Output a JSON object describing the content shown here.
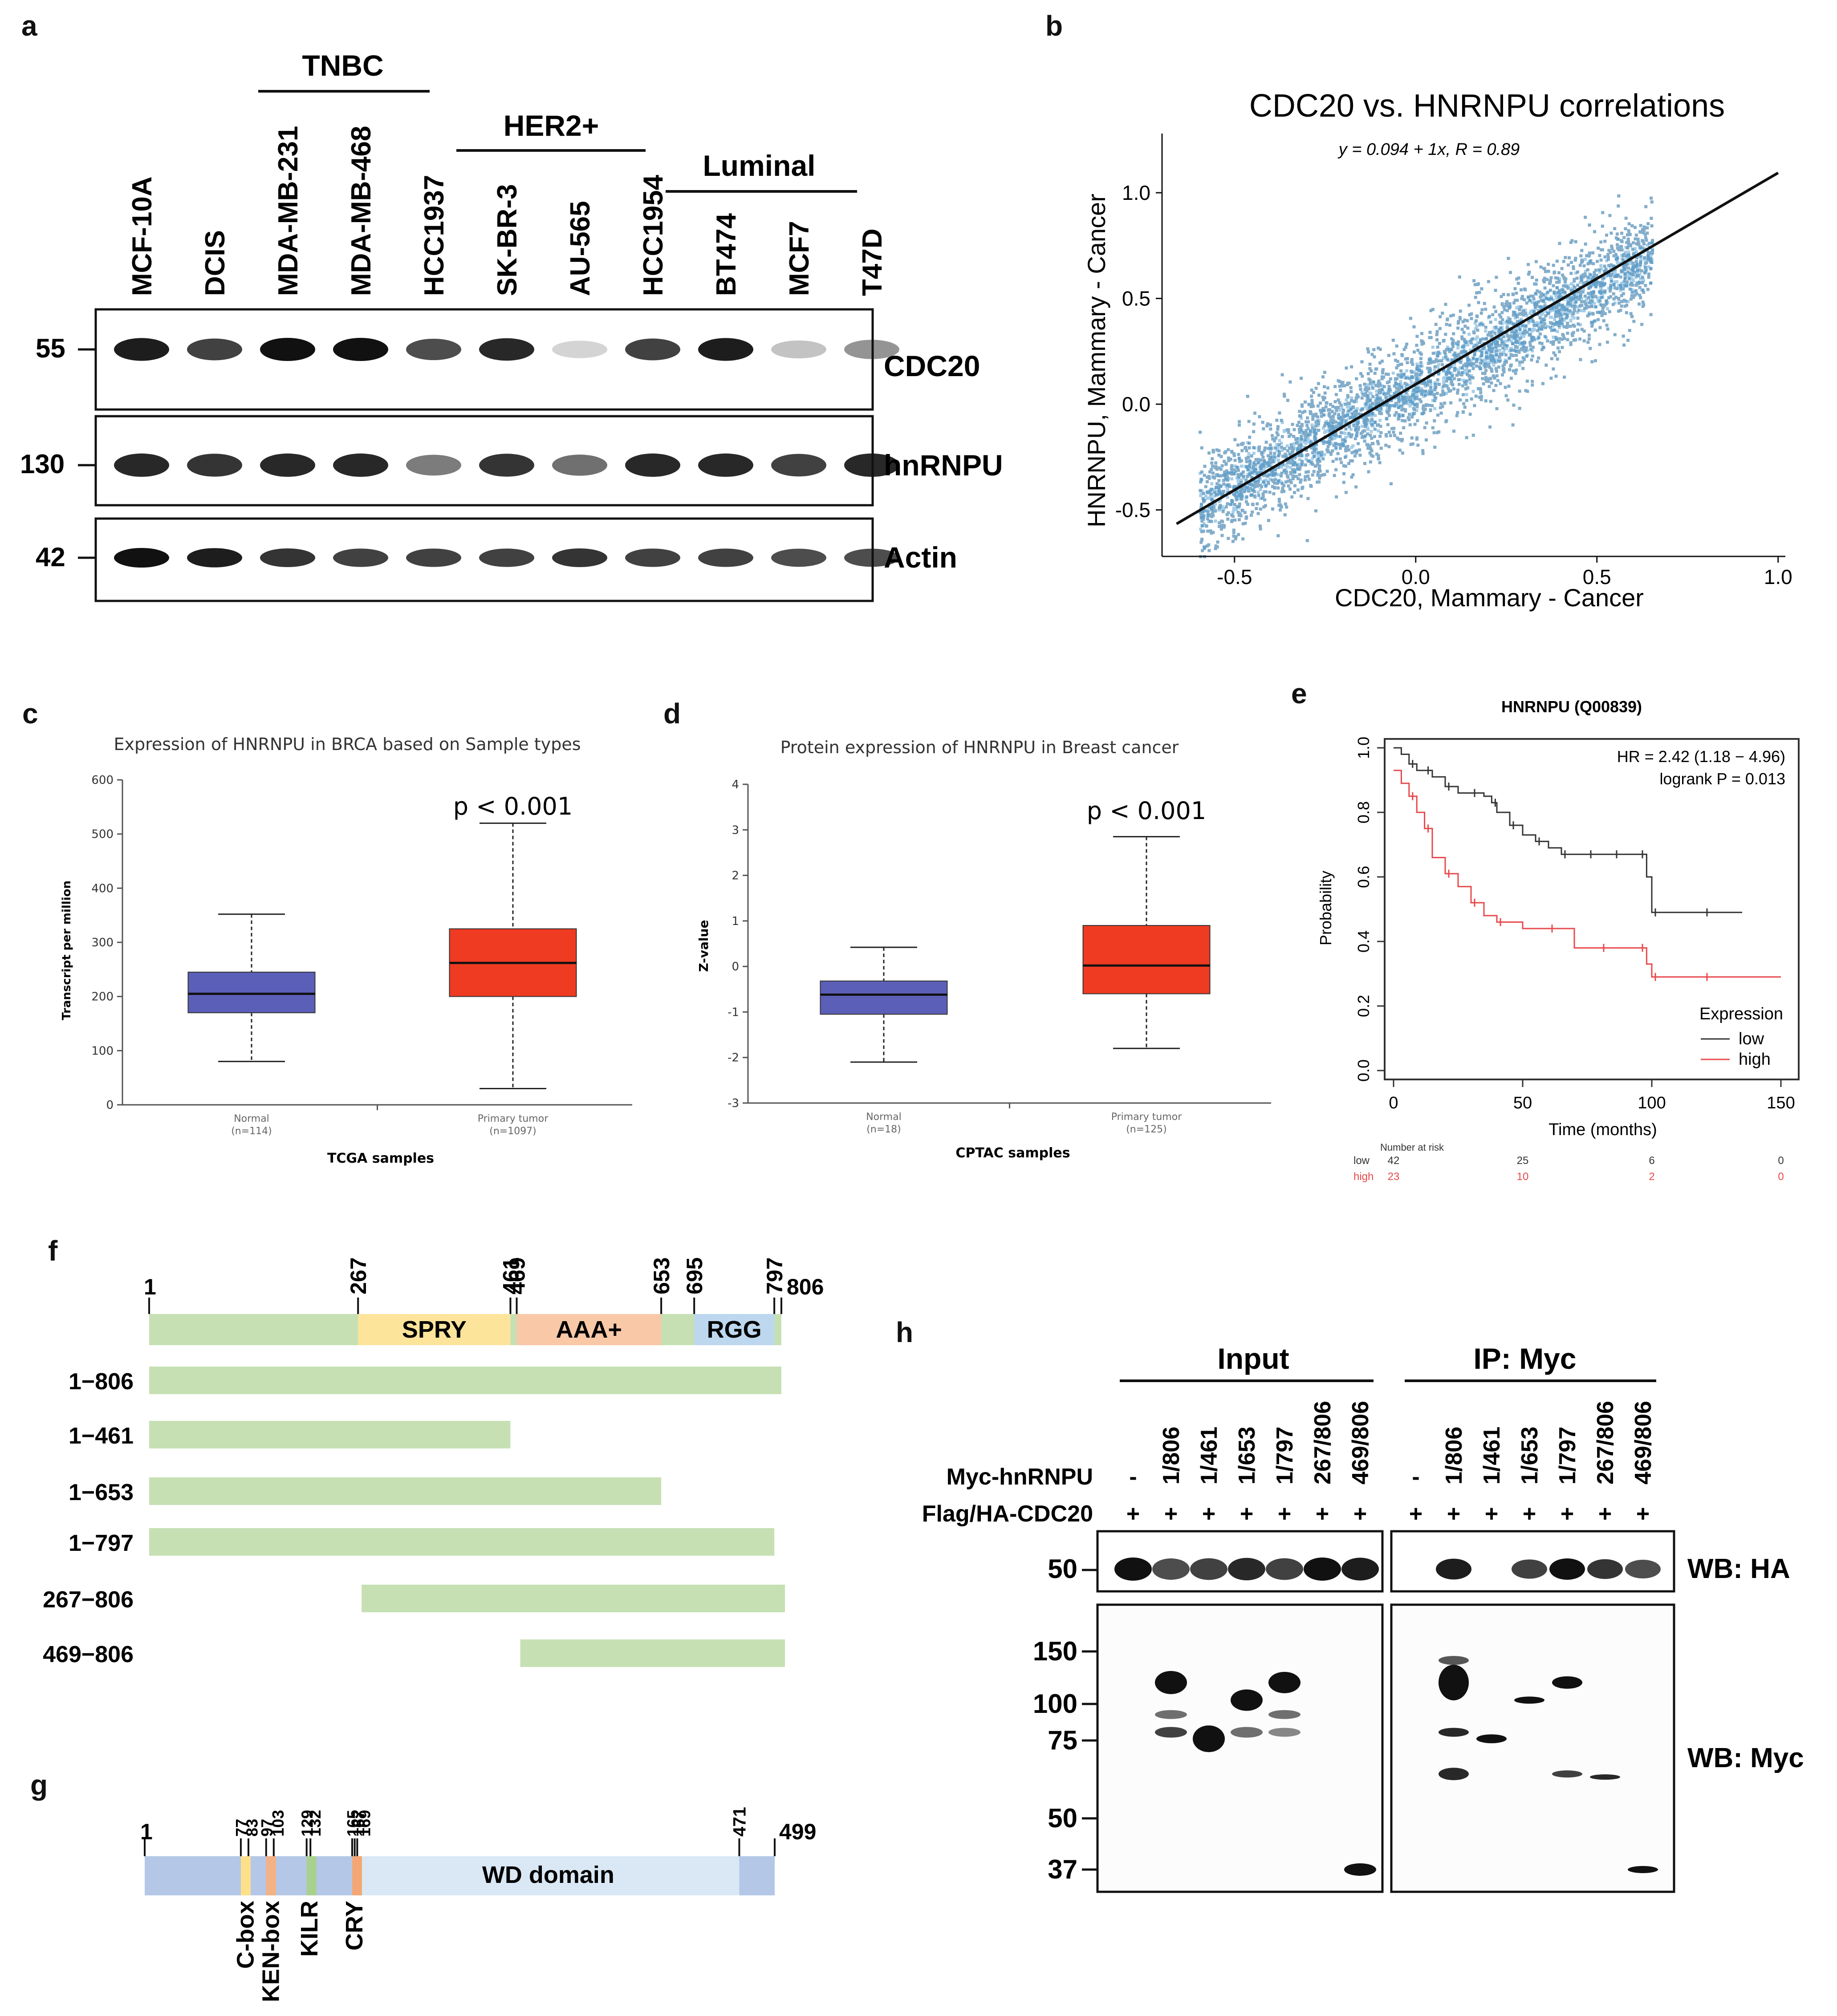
{
  "panels": {
    "a": "a",
    "b": "b",
    "c": "c",
    "d": "d",
    "e": "e",
    "f": "f",
    "g": "g",
    "h": "h"
  },
  "panel_a": {
    "groups": [
      "TNBC",
      "HER2+",
      "Luminal"
    ],
    "lanes": [
      "MCF-10A",
      "DCIS",
      "MDA-MB-231",
      "MDA-MB-468",
      "HCC1937",
      "SK-BR-3",
      "AU-565",
      "HCC1954",
      "BT474",
      "MCF7",
      "T47D"
    ],
    "markers": [
      "55",
      "130",
      "42"
    ],
    "proteins": [
      "CDC20",
      "hnRNPU",
      "Actin"
    ]
  },
  "panel_c": {
    "title": "Expression of HNRNPU in BRCA based on Sample types",
    "ylabel": "Transcript per million",
    "xlabel": "TCGA samples",
    "groups": [
      {
        "name": "Normal",
        "n": "(n=114)"
      },
      {
        "name": "Primary tumor",
        "n": "(n=1097)"
      }
    ],
    "pvalue": "p < 0.001"
  },
  "panel_d": {
    "title": "Protein expression of HNRNPU in Breast cancer",
    "ylabel": "Z-value",
    "xlabel": "CPTAC samples",
    "groups": [
      {
        "name": "Normal",
        "n": "(n=18)"
      },
      {
        "name": "Primary tumor",
        "n": "(n=125)"
      }
    ],
    "pvalue": "p < 0.001"
  },
  "panel_e": {
    "title": "HNRNPU (Q00839)",
    "hr": "HR = 2.42 (1.18 − 4.96)",
    "logrank": "logrank P = 0.013",
    "ylabel": "Probability",
    "xlabel": "Time (months)",
    "legend_title": "Expression",
    "legend": [
      "low",
      "high"
    ],
    "risk_title": "Number at risk",
    "risk_rows": [
      {
        "name": "low",
        "values": [
          "42",
          "25",
          "6",
          "0"
        ]
      },
      {
        "name": "high",
        "values": [
          "23",
          "10",
          "2",
          "0"
        ]
      }
    ]
  },
  "panel_f": {
    "positions": [
      "1",
      "267",
      "461",
      "469",
      "653",
      "695",
      "797",
      "806"
    ],
    "domains": [
      "SPRY",
      "AAA+",
      "RGG"
    ],
    "constructs": [
      "1−806",
      "1−461",
      "1−653",
      "1−797",
      "267−806",
      "469−806"
    ]
  },
  "panel_g": {
    "positions": [
      "1",
      "77",
      "83",
      "97",
      "103",
      "129",
      "132",
      "165",
      "167",
      "169",
      "471",
      "499"
    ],
    "domain": "WD domain",
    "motifs": [
      "C-box",
      "KEN-box",
      "KILR",
      "CRY"
    ]
  },
  "panel_h": {
    "input_label": "Input",
    "ip_label": "IP: Myc",
    "row1_label": "Myc-hnRNPU",
    "row2_label": "Flag/HA-CDC20",
    "lanes": [
      "-",
      "1/806",
      "1/461",
      "1/653",
      "1/797",
      "267/806",
      "469/806"
    ],
    "plus": "+",
    "wb_ha": "WB: HA",
    "wb_myc": "WB: Myc",
    "ha_marker": "50",
    "myc_markers": [
      "150",
      "100",
      "75",
      "50",
      "37"
    ]
  },
  "chart_data": [
    {
      "type": "scatter",
      "title": "CDC20 vs. HNRNPU correlations",
      "equation": "y = 0.094 + 1x,  R = 0.89",
      "xlabel": "CDC20, Mammary - Cancer",
      "ylabel": "HNRNPU, Mammary - Cancer",
      "xlim": [
        -0.7,
        1.02
      ],
      "ylim": [
        -0.72,
        1.28
      ],
      "xticks": [
        "-0.5",
        "0.0",
        "0.5",
        "1.0"
      ],
      "yticks": [
        "-0.5",
        "0.0",
        "0.5",
        "1.0"
      ],
      "fit": {
        "intercept": 0.094,
        "slope": 1
      }
    },
    {
      "type": "box",
      "title": "Expression of HNRNPU in BRCA based on Sample types",
      "categories": [
        "Normal",
        "Primary tumor"
      ],
      "ylim": [
        0,
        600
      ],
      "yticks": [
        "0",
        "100",
        "200",
        "300",
        "400",
        "500",
        "600"
      ],
      "boxes": [
        {
          "name": "Normal",
          "whislo": 80,
          "q1": 170,
          "med": 205,
          "q3": 245,
          "whishi": 352,
          "color": "#5b5fb8"
        },
        {
          "name": "Primary tumor",
          "whislo": 30,
          "q1": 200,
          "med": 262,
          "q3": 325,
          "whishi": 520,
          "color": "#ee3b22"
        }
      ]
    },
    {
      "type": "box",
      "title": "Protein expression of HNRNPU in Breast cancer",
      "categories": [
        "Normal",
        "Primary tumor"
      ],
      "ylim": [
        -3,
        4
      ],
      "yticks": [
        "-3",
        "-2",
        "-1",
        "0",
        "1",
        "2",
        "3",
        "4"
      ],
      "boxes": [
        {
          "name": "Normal",
          "whislo": -2.1,
          "q1": -1.05,
          "med": -0.62,
          "q3": -0.32,
          "whishi": 0.42,
          "color": "#5b5fb8"
        },
        {
          "name": "Primary tumor",
          "whislo": -1.8,
          "q1": -0.6,
          "med": 0.02,
          "q3": 0.9,
          "whishi": 2.85,
          "color": "#ee3b22"
        }
      ]
    },
    {
      "type": "line",
      "title": "HNRNPU (Q00839)",
      "xlim": [
        0,
        150
      ],
      "ylim": [
        0,
        1
      ],
      "xticks": [
        "0",
        "50",
        "100",
        "150"
      ],
      "yticks": [
        "0.0",
        "0.2",
        "0.4",
        "0.6",
        "0.8",
        "1.0"
      ],
      "series": [
        {
          "name": "low",
          "color": "#333333",
          "x": [
            0,
            3,
            6,
            9,
            12,
            15,
            20,
            25,
            30,
            35,
            38,
            40,
            45,
            50,
            55,
            60,
            65,
            70,
            75,
            80,
            85,
            90,
            95,
            98,
            100,
            110,
            120,
            135
          ],
          "y": [
            1.0,
            0.98,
            0.95,
            0.93,
            0.93,
            0.91,
            0.88,
            0.86,
            0.86,
            0.85,
            0.83,
            0.8,
            0.76,
            0.73,
            0.71,
            0.69,
            0.67,
            0.67,
            0.67,
            0.67,
            0.67,
            0.67,
            0.67,
            0.6,
            0.49,
            0.49,
            0.49,
            0.49
          ]
        },
        {
          "name": "high",
          "color": "#e8484a",
          "x": [
            0,
            3,
            6,
            9,
            12,
            15,
            20,
            25,
            30,
            35,
            40,
            50,
            60,
            70,
            80,
            90,
            95,
            98,
            100,
            110,
            120,
            150
          ],
          "y": [
            0.93,
            0.89,
            0.85,
            0.8,
            0.75,
            0.66,
            0.61,
            0.57,
            0.52,
            0.48,
            0.46,
            0.44,
            0.44,
            0.38,
            0.38,
            0.38,
            0.38,
            0.33,
            0.29,
            0.29,
            0.29,
            0.29
          ]
        }
      ]
    }
  ]
}
